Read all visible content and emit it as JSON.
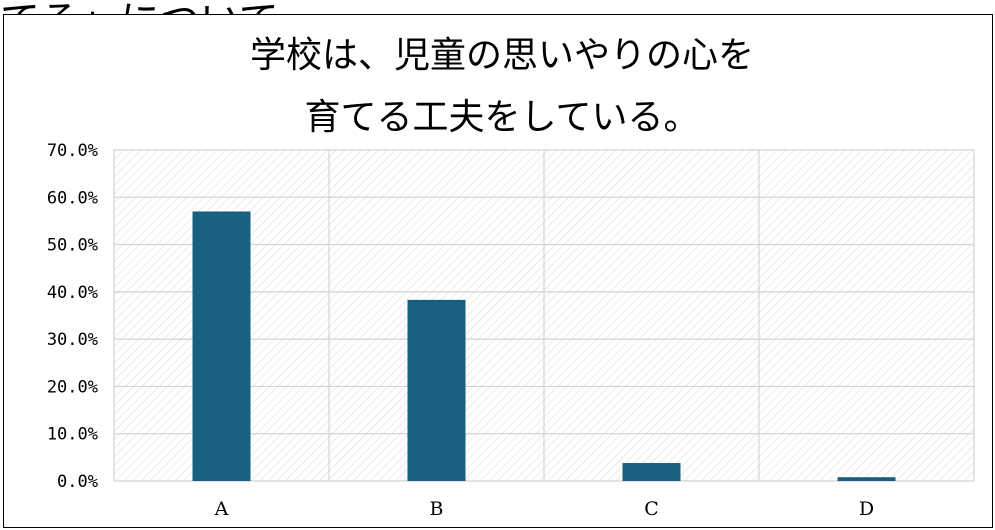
{
  "page": {
    "top_fragment": "てる」について"
  },
  "chart_data": {
    "type": "bar",
    "title_lines": [
      "学校は、児童の思いやりの心を",
      "育てる工夫をしている。"
    ],
    "categories": [
      "A",
      "B",
      "C",
      "D"
    ],
    "values": [
      0.57,
      0.383,
      0.038,
      0.008
    ],
    "ylim": [
      0,
      0.7
    ],
    "ytick_step": 0.1,
    "ytick_labels": [
      "0.0%",
      "10.0%",
      "20.0%",
      "30.0%",
      "40.0%",
      "50.0%",
      "60.0%",
      "70.0%"
    ],
    "xlabel": "",
    "ylabel": "",
    "grid": true,
    "legend": "none",
    "colors": {
      "bar": "#17607f",
      "grid": "#d4d4d4",
      "hatch": "#dcdcdc"
    }
  }
}
